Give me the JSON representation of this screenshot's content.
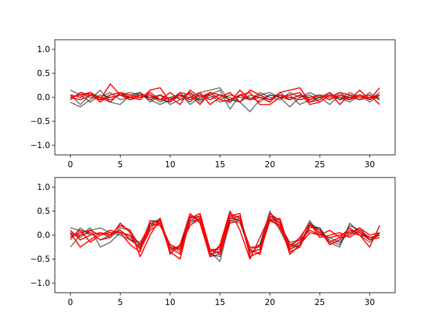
{
  "chart_data": [
    {
      "type": "line",
      "xlim": [
        -1.55,
        32.55
      ],
      "ylim": [
        -1.2,
        1.2
      ],
      "xticks": [
        0,
        5,
        10,
        15,
        20,
        25,
        30
      ],
      "yticks": [
        -1.0,
        -0.5,
        0.0,
        0.5,
        1.0
      ],
      "xtick_labels": [
        "0",
        "5",
        "10",
        "15",
        "20",
        "25",
        "30"
      ],
      "ytick_labels": [
        "−1.0",
        "−0.5",
        "0.0",
        "0.5",
        "1.0"
      ],
      "grid": false,
      "series_colors": {
        "gray": "#000000",
        "gray_alpha": 0.55,
        "red": "#ff0000"
      },
      "x": [
        0,
        1,
        2,
        3,
        4,
        5,
        6,
        7,
        8,
        9,
        10,
        11,
        12,
        13,
        14,
        15,
        16,
        17,
        18,
        19,
        20,
        21,
        22,
        23,
        24,
        25,
        26,
        27,
        28,
        29,
        30,
        31
      ],
      "series": [
        {
          "color": "gray",
          "values": [
            0.15,
            0.05,
            0.1,
            0.0,
            -0.05,
            0.05,
            0.1,
            0.05,
            0.0,
            -0.05,
            -0.1,
            0.05,
            -0.1,
            0.1,
            0.15,
            0.2,
            -0.1,
            0.05,
            -0.05,
            0.1,
            0.0,
            -0.05,
            0.1,
            0.0,
            0.05,
            -0.1,
            0.05,
            -0.05,
            0.1,
            0.0,
            0.05,
            -0.05
          ]
        },
        {
          "color": "gray",
          "values": [
            -0.1,
            -0.2,
            -0.05,
            0.15,
            -0.1,
            -0.15,
            0.05,
            0.1,
            -0.05,
            -0.15,
            -0.05,
            0.1,
            -0.15,
            0.0,
            0.05,
            -0.1,
            -0.05,
            -0.1,
            -0.3,
            -0.05,
            0.05,
            0.0,
            -0.2,
            0.0,
            0.1,
            0.0,
            -0.15,
            0.05,
            0.0,
            -0.05,
            0.1,
            -0.05
          ]
        },
        {
          "color": "gray",
          "values": [
            0.05,
            -0.15,
            0.05,
            0.0,
            0.1,
            -0.05,
            0.0,
            0.1,
            -0.1,
            0.05,
            -0.15,
            -0.05,
            0.1,
            -0.1,
            0.05,
            0.15,
            -0.25,
            0.05,
            0.0,
            -0.1,
            0.05,
            0.0,
            0.05,
            -0.15,
            -0.05,
            0.0,
            0.1,
            -0.05,
            0.0,
            0.05,
            -0.1,
            0.05
          ]
        },
        {
          "color": "gray",
          "values": [
            0.0,
            0.05,
            -0.1,
            0.05,
            0.0,
            0.05,
            -0.05,
            0.0,
            0.05,
            -0.1,
            0.0,
            0.05,
            0.0,
            -0.05,
            0.0,
            0.05,
            0.0,
            -0.1,
            0.05,
            0.0,
            -0.05,
            0.1,
            -0.05,
            0.05,
            -0.1,
            0.0,
            0.05,
            0.0,
            -0.1,
            0.05,
            0.0,
            0.0
          ]
        },
        {
          "color": "gray",
          "values": [
            -0.05,
            0.1,
            0.0,
            -0.05,
            0.05,
            0.1,
            -0.05,
            0.05,
            0.0,
            0.05,
            -0.05,
            0.0,
            0.1,
            -0.05,
            0.1,
            -0.05,
            0.05,
            0.0,
            -0.05,
            0.05,
            0.1,
            0.0,
            -0.05,
            0.05,
            0.0,
            0.05,
            -0.05,
            0.1,
            -0.05,
            0.05,
            -0.05,
            0.1
          ]
        },
        {
          "color": "red",
          "values": [
            0.05,
            0.0,
            0.1,
            -0.05,
            0.28,
            0.05,
            0.0,
            -0.05,
            0.15,
            0.2,
            -0.1,
            0.1,
            0.05,
            -0.15,
            0.1,
            -0.05,
            -0.1,
            0.15,
            -0.05,
            0.0,
            -0.1,
            0.1,
            0.15,
            0.2,
            -0.1,
            -0.05,
            0.1,
            -0.15,
            0.05,
            0.0,
            0.05,
            -0.15
          ]
        },
        {
          "color": "red",
          "values": [
            -0.05,
            0.1,
            0.05,
            0.0,
            -0.1,
            0.1,
            0.05,
            0.0,
            0.1,
            -0.05,
            0.0,
            -0.15,
            0.15,
            0.0,
            0.1,
            0.05,
            -0.05,
            0.05,
            0.1,
            -0.15,
            -0.15,
            0.0,
            0.05,
            0.1,
            -0.15,
            -0.1,
            0.05,
            0.0,
            -0.05,
            0.15,
            -0.05,
            0.2
          ]
        },
        {
          "color": "red",
          "values": [
            0.0,
            0.05,
            0.1,
            -0.1,
            0.05,
            0.1,
            0.0,
            0.05,
            0.05,
            -0.05,
            0.1,
            -0.05,
            0.0,
            0.1,
            -0.15,
            0.0,
            0.1,
            -0.1,
            0.15,
            0.05,
            -0.05,
            0.05,
            0.0,
            -0.05,
            0.0,
            0.05,
            0.0,
            0.1,
            0.05,
            -0.05,
            0.0,
            0.05
          ]
        },
        {
          "color": "red",
          "values": [
            0.0,
            -0.05,
            0.05,
            -0.05,
            0.0,
            0.05,
            -0.05,
            0.05,
            -0.05,
            0.05,
            -0.05,
            0.05,
            -0.05,
            0.05,
            -0.05,
            0.05,
            -0.05,
            0.05,
            -0.05,
            0.05,
            -0.05,
            0.05,
            -0.05,
            0.05,
            -0.05,
            0.05,
            -0.05,
            0.05,
            -0.05,
            0.05,
            -0.05,
            0.05
          ]
        }
      ]
    },
    {
      "type": "line",
      "xlim": [
        -1.55,
        32.55
      ],
      "ylim": [
        -1.2,
        1.2
      ],
      "xticks": [
        0,
        5,
        10,
        15,
        20,
        25,
        30
      ],
      "yticks": [
        -1.0,
        -0.5,
        0.0,
        0.5,
        1.0
      ],
      "xtick_labels": [
        "0",
        "5",
        "10",
        "15",
        "20",
        "25",
        "30"
      ],
      "ytick_labels": [
        "−1.0",
        "−0.5",
        "0.0",
        "0.5",
        "1.0"
      ],
      "grid": false,
      "series_colors": {
        "gray": "#000000",
        "gray_alpha": 0.55,
        "red": "#ff0000"
      },
      "x": [
        0,
        1,
        2,
        3,
        4,
        5,
        6,
        7,
        8,
        9,
        10,
        11,
        12,
        13,
        14,
        15,
        16,
        17,
        18,
        19,
        20,
        21,
        22,
        23,
        24,
        25,
        26,
        27,
        28,
        29,
        30,
        31
      ],
      "series": [
        {
          "color": "gray",
          "values": [
            0.15,
            0.1,
            0.05,
            -0.1,
            0.0,
            0.1,
            -0.05,
            -0.3,
            0.2,
            0.35,
            -0.3,
            -0.25,
            0.4,
            0.35,
            -0.4,
            -0.45,
            0.35,
            0.3,
            -0.3,
            -0.2,
            0.5,
            0.1,
            -0.3,
            -0.2,
            0.25,
            0.1,
            -0.1,
            -0.2,
            0.2,
            0.1,
            -0.1,
            0.05
          ]
        },
        {
          "color": "gray",
          "values": [
            -0.25,
            0.0,
            0.15,
            -0.25,
            -0.15,
            0.05,
            0.0,
            -0.2,
            0.25,
            0.3,
            -0.25,
            -0.3,
            0.35,
            0.4,
            -0.35,
            -0.55,
            0.3,
            0.35,
            -0.35,
            -0.3,
            0.45,
            0.25,
            -0.2,
            -0.25,
            0.2,
            0.15,
            -0.15,
            -0.25,
            0.25,
            0.05,
            -0.05,
            0.0
          ]
        },
        {
          "color": "gray",
          "values": [
            0.05,
            -0.05,
            0.1,
            0.15,
            0.05,
            0.0,
            -0.1,
            -0.15,
            0.2,
            0.25,
            -0.2,
            -0.35,
            0.3,
            0.3,
            -0.45,
            -0.4,
            0.3,
            0.25,
            -0.25,
            -0.25,
            0.35,
            0.15,
            -0.25,
            -0.15,
            0.15,
            0.15,
            -0.2,
            -0.1,
            0.1,
            0.0,
            -0.15,
            0.05
          ]
        },
        {
          "color": "gray",
          "values": [
            -0.1,
            0.15,
            0.0,
            0.05,
            -0.05,
            0.15,
            0.1,
            -0.25,
            0.3,
            0.3,
            -0.35,
            -0.2,
            0.25,
            0.35,
            -0.3,
            -0.35,
            0.4,
            0.3,
            -0.4,
            -0.2,
            0.4,
            0.2,
            -0.15,
            -0.1,
            0.3,
            0.0,
            -0.05,
            -0.15,
            0.05,
            0.15,
            -0.1,
            0.0
          ]
        },
        {
          "color": "red",
          "values": [
            0.05,
            -0.25,
            -0.1,
            0.05,
            0.0,
            0.2,
            0.1,
            -0.45,
            0.0,
            0.35,
            -0.4,
            -0.2,
            0.45,
            0.25,
            -0.45,
            -0.2,
            0.5,
            0.1,
            -0.5,
            -0.05,
            0.4,
            0.25,
            -0.4,
            -0.2,
            0.05,
            0.0,
            0.1,
            -0.05,
            0.15,
            0.0,
            -0.25,
            0.2
          ]
        },
        {
          "color": "red",
          "values": [
            -0.05,
            0.1,
            -0.15,
            0.0,
            0.1,
            0.05,
            -0.2,
            -0.35,
            0.3,
            0.25,
            -0.35,
            -0.5,
            0.35,
            0.45,
            -0.3,
            -0.3,
            0.4,
            0.45,
            -0.45,
            -0.35,
            0.3,
            0.35,
            -0.3,
            -0.15,
            0.2,
            0.1,
            -0.2,
            -0.1,
            0.1,
            0.05,
            -0.1,
            -0.05
          ]
        },
        {
          "color": "red",
          "values": [
            0.0,
            0.0,
            0.05,
            -0.1,
            -0.05,
            0.25,
            0.05,
            -0.2,
            0.25,
            0.2,
            -0.2,
            -0.3,
            0.3,
            0.4,
            -0.35,
            -0.25,
            0.45,
            0.35,
            -0.3,
            -0.4,
            0.35,
            0.15,
            -0.25,
            -0.05,
            0.25,
            -0.05,
            0.0,
            0.05,
            -0.05,
            0.1,
            -0.05,
            0.0
          ]
        },
        {
          "color": "red",
          "values": [
            0.1,
            -0.1,
            0.0,
            0.05,
            0.0,
            0.1,
            -0.1,
            -0.25,
            0.15,
            0.3,
            -0.25,
            -0.4,
            0.4,
            0.3,
            -0.4,
            -0.35,
            0.35,
            0.4,
            -0.35,
            -0.3,
            0.45,
            0.3,
            -0.35,
            -0.25,
            0.2,
            0.05,
            -0.15,
            -0.05,
            0.0,
            0.15,
            0.0,
            0.05
          ]
        },
        {
          "color": "red",
          "values": [
            -0.05,
            0.05,
            0.1,
            0.0,
            0.05,
            0.05,
            0.0,
            -0.3,
            0.1,
            0.25,
            -0.3,
            -0.25,
            0.2,
            0.35,
            -0.3,
            -0.4,
            0.25,
            0.3,
            -0.25,
            -0.25,
            0.3,
            0.2,
            -0.2,
            -0.1,
            0.1,
            0.0,
            -0.05,
            0.0,
            0.05,
            0.0,
            -0.05,
            0.0
          ]
        }
      ]
    }
  ]
}
